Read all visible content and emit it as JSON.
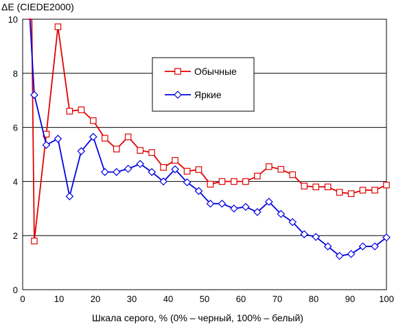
{
  "chart_data": {
    "type": "line",
    "ylabel": "ΔE (CIEDE2000)",
    "xlabel": "Шкала серого, % (0% – черный, 100% – белый)",
    "xlim": [
      0,
      100
    ],
    "ylim": [
      0,
      10
    ],
    "xticks": [
      0,
      10,
      20,
      30,
      40,
      50,
      60,
      70,
      80,
      90,
      100
    ],
    "yticks": [
      0,
      2,
      4,
      6,
      8,
      10
    ],
    "grid": "horizontal",
    "legend_position": "upper-right",
    "series": [
      {
        "name": "Обычные",
        "color": "#e00000",
        "marker": "square",
        "x": [
          1.5,
          2.5,
          3.2,
          6.5,
          9.7,
          12.9,
          16.1,
          19.4,
          22.6,
          25.8,
          29.0,
          32.3,
          35.5,
          38.7,
          41.9,
          45.2,
          48.4,
          51.6,
          54.8,
          58.1,
          61.3,
          64.5,
          67.7,
          71.0,
          74.2,
          77.4,
          80.6,
          83.9,
          87.1,
          90.3,
          93.5,
          96.8,
          100
        ],
        "y": [
          10.0,
          10.0,
          1.8,
          5.75,
          9.72,
          6.6,
          6.65,
          6.25,
          5.6,
          5.2,
          5.65,
          5.15,
          5.07,
          4.52,
          4.78,
          4.38,
          4.44,
          3.9,
          4.0,
          4.0,
          4.0,
          4.2,
          4.55,
          4.45,
          4.25,
          3.83,
          3.8,
          3.8,
          3.6,
          3.55,
          3.68,
          3.68,
          3.87
        ]
      },
      {
        "name": "Яркие",
        "color": "#0000e0",
        "marker": "diamond",
        "x": [
          2.0,
          3.2,
          6.5,
          9.7,
          12.9,
          16.1,
          19.4,
          22.6,
          25.8,
          29.0,
          32.3,
          35.5,
          38.7,
          41.9,
          45.2,
          48.4,
          51.6,
          54.8,
          58.1,
          61.3,
          64.5,
          67.7,
          71.0,
          74.2,
          77.4,
          80.6,
          83.9,
          87.1,
          90.3,
          93.5,
          96.8,
          100
        ],
        "y": [
          10.0,
          7.2,
          5.35,
          5.58,
          3.45,
          5.12,
          5.65,
          4.35,
          4.35,
          4.47,
          4.65,
          4.35,
          4.0,
          4.45,
          3.97,
          3.65,
          3.18,
          3.18,
          3.0,
          3.06,
          2.87,
          3.25,
          2.8,
          2.5,
          2.05,
          1.95,
          1.6,
          1.25,
          1.32,
          1.6,
          1.6,
          1.93
        ]
      }
    ]
  }
}
